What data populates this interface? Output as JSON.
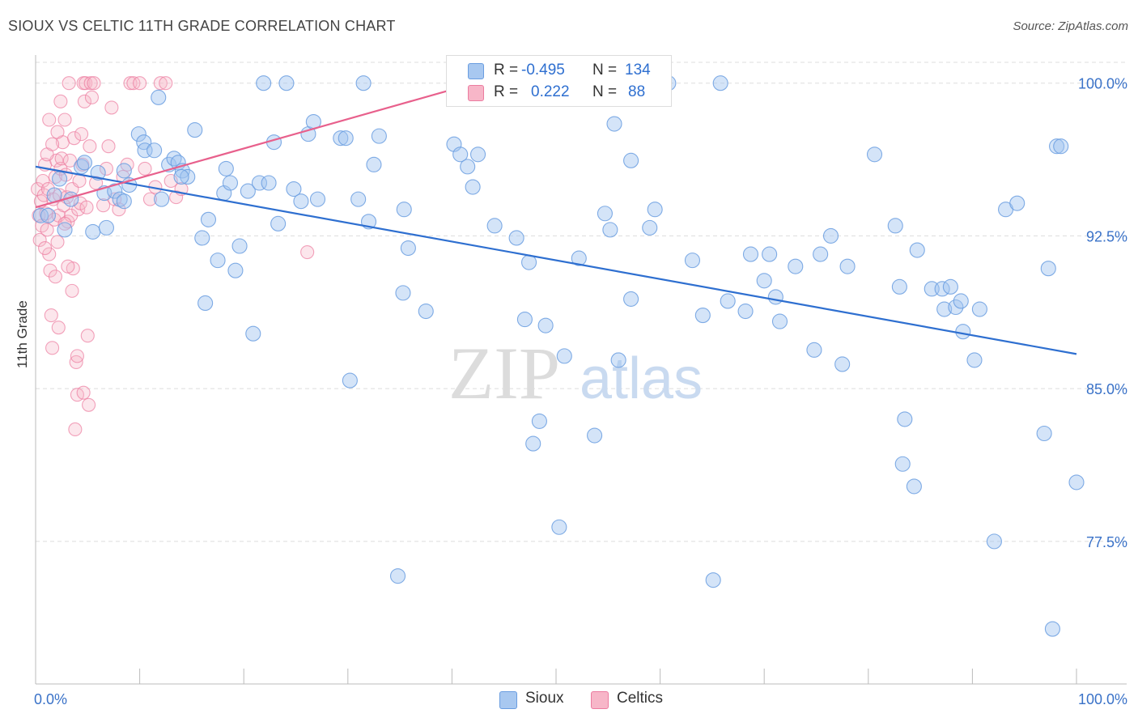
{
  "title": "SIOUX VS CELTIC 11TH GRADE CORRELATION CHART",
  "source": "Source: ZipAtlas.com",
  "watermark": {
    "zip": "ZIP",
    "atlas": "atlas"
  },
  "legend": {
    "rows": [
      {
        "r_label": "R =",
        "r_value": "-0.495",
        "n_label": "N =",
        "n_value": "134",
        "color": "#a8c8f0"
      },
      {
        "r_label": "R =",
        "r_value": "0.222",
        "n_label": "N =",
        "n_value": "88",
        "color": "#f7b6c8"
      }
    ]
  },
  "bottom_legend": [
    {
      "label": "Sioux",
      "color": "#a8c8f0"
    },
    {
      "label": "Celtics",
      "color": "#f7b6c8"
    }
  ],
  "colors": {
    "sioux": "#6a9de0",
    "sioux_fill": "rgba(160,196,240,0.45)",
    "celtics": "#ec7ca0",
    "celtics_fill": "rgba(247,182,200,0.35)",
    "sioux_line": "#2e6fd0",
    "celtics_line": "#e8608c",
    "axis_text": "#3a72c8"
  },
  "chart_data": {
    "type": "scatter",
    "title": "SIOUX VS CELTIC 11TH GRADE CORRELATION CHART",
    "xlabel": "",
    "ylabel": "11th Grade",
    "xlim": [
      0,
      100
    ],
    "ylim": [
      70.5,
      101.3
    ],
    "x_tick_labels": [
      "0.0%",
      "100.0%"
    ],
    "y_ticks": [
      77.5,
      85.0,
      92.5,
      100.0
    ],
    "y_tick_labels": [
      "77.5%",
      "85.0%",
      "92.5%",
      "100.0%"
    ],
    "grid": "horizontal dashed",
    "series": [
      {
        "name": "Sioux",
        "trend": [
          [
            0,
            95.9
          ],
          [
            100,
            86.7
          ]
        ],
        "points": [
          [
            0.5,
            93.5
          ],
          [
            1.2,
            93.5
          ],
          [
            1.8,
            94.5
          ],
          [
            2.3,
            95.3
          ],
          [
            2.8,
            92.8
          ],
          [
            3.4,
            94.3
          ],
          [
            4.4,
            95.9
          ],
          [
            4.7,
            96.1
          ],
          [
            5.5,
            92.7
          ],
          [
            6.0,
            95.6
          ],
          [
            6.6,
            94.6
          ],
          [
            6.8,
            92.9
          ],
          [
            7.6,
            94.7
          ],
          [
            8.1,
            94.3
          ],
          [
            8.5,
            95.7
          ],
          [
            9.0,
            95.0
          ],
          [
            9.9,
            97.5
          ],
          [
            10.4,
            97.1
          ],
          [
            10.5,
            96.7
          ],
          [
            11.4,
            96.7
          ],
          [
            11.8,
            99.3
          ],
          [
            12.1,
            94.3
          ],
          [
            12.8,
            96.0
          ],
          [
            13.3,
            96.3
          ],
          [
            13.7,
            96.1
          ],
          [
            14.1,
            95.7
          ],
          [
            14.6,
            95.4
          ],
          [
            15.3,
            97.7
          ],
          [
            16.0,
            92.4
          ],
          [
            16.3,
            89.2
          ],
          [
            16.6,
            93.3
          ],
          [
            17.5,
            91.3
          ],
          [
            18.1,
            94.6
          ],
          [
            18.3,
            95.8
          ],
          [
            18.7,
            95.1
          ],
          [
            19.2,
            90.8
          ],
          [
            19.6,
            92.0
          ],
          [
            20.4,
            94.7
          ],
          [
            20.9,
            87.7
          ],
          [
            21.5,
            95.1
          ],
          [
            21.9,
            100.0
          ],
          [
            22.4,
            95.1
          ],
          [
            22.9,
            97.1
          ],
          [
            23.3,
            93.1
          ],
          [
            24.1,
            100.0
          ],
          [
            24.8,
            94.8
          ],
          [
            25.5,
            94.2
          ],
          [
            26.2,
            97.5
          ],
          [
            26.7,
            98.1
          ],
          [
            27.1,
            94.3
          ],
          [
            29.3,
            97.3
          ],
          [
            29.8,
            97.3
          ],
          [
            30.2,
            85.4
          ],
          [
            31.0,
            94.3
          ],
          [
            31.5,
            100.0
          ],
          [
            32.0,
            93.2
          ],
          [
            32.5,
            96.0
          ],
          [
            33.0,
            97.4
          ],
          [
            34.8,
            75.8
          ],
          [
            35.3,
            89.7
          ],
          [
            35.4,
            93.8
          ],
          [
            35.8,
            91.9
          ],
          [
            37.5,
            88.8
          ],
          [
            40.2,
            97.0
          ],
          [
            40.8,
            96.5
          ],
          [
            41.5,
            95.9
          ],
          [
            42.0,
            94.9
          ],
          [
            42.5,
            96.5
          ],
          [
            44.1,
            93.0
          ],
          [
            45.1,
            100.0
          ],
          [
            46.2,
            92.4
          ],
          [
            47.0,
            88.4
          ],
          [
            47.4,
            91.2
          ],
          [
            47.8,
            82.3
          ],
          [
            48.4,
            83.4
          ],
          [
            49.0,
            88.1
          ],
          [
            50.3,
            78.2
          ],
          [
            50.8,
            86.6
          ],
          [
            52.2,
            91.4
          ],
          [
            53.7,
            82.7
          ],
          [
            54.7,
            93.6
          ],
          [
            55.2,
            92.8
          ],
          [
            55.6,
            98.0
          ],
          [
            56.0,
            86.4
          ],
          [
            57.2,
            89.4
          ],
          [
            59.0,
            92.9
          ],
          [
            59.5,
            93.8
          ],
          [
            60.8,
            100.0
          ],
          [
            63.1,
            91.3
          ],
          [
            64.1,
            88.6
          ],
          [
            65.1,
            75.6
          ],
          [
            65.8,
            100.0
          ],
          [
            66.5,
            89.3
          ],
          [
            68.2,
            88.8
          ],
          [
            68.7,
            91.6
          ],
          [
            70.0,
            90.3
          ],
          [
            70.5,
            91.6
          ],
          [
            71.1,
            89.5
          ],
          [
            71.5,
            88.3
          ],
          [
            73.0,
            91.0
          ],
          [
            74.8,
            86.9
          ],
          [
            75.4,
            91.6
          ],
          [
            76.4,
            92.5
          ],
          [
            77.5,
            86.2
          ],
          [
            78.0,
            91.0
          ],
          [
            80.6,
            96.5
          ],
          [
            82.6,
            93.0
          ],
          [
            83.0,
            90.0
          ],
          [
            83.3,
            81.3
          ],
          [
            83.5,
            83.5
          ],
          [
            84.4,
            80.2
          ],
          [
            84.7,
            91.8
          ],
          [
            86.1,
            89.9
          ],
          [
            87.1,
            89.9
          ],
          [
            87.3,
            88.9
          ],
          [
            87.9,
            90.0
          ],
          [
            88.4,
            89.0
          ],
          [
            88.9,
            89.3
          ],
          [
            89.1,
            87.8
          ],
          [
            90.2,
            86.4
          ],
          [
            90.7,
            88.9
          ],
          [
            92.1,
            77.5
          ],
          [
            93.2,
            93.8
          ],
          [
            94.3,
            94.1
          ],
          [
            96.9,
            82.8
          ],
          [
            97.3,
            90.9
          ],
          [
            97.7,
            73.2
          ],
          [
            98.1,
            96.9
          ],
          [
            100.0,
            80.4
          ],
          [
            98.5,
            96.9
          ],
          [
            57.2,
            96.2
          ],
          [
            14.0,
            95.4
          ],
          [
            8.5,
            94.2
          ]
        ]
      },
      {
        "name": "Celtics",
        "trend": [
          [
            0,
            93.9
          ],
          [
            42.2,
            100.0
          ]
        ],
        "points": [
          [
            0.2,
            94.8
          ],
          [
            0.3,
            93.5
          ],
          [
            0.4,
            92.3
          ],
          [
            0.5,
            94.2
          ],
          [
            0.6,
            93.0
          ],
          [
            0.7,
            95.2
          ],
          [
            0.8,
            94.5
          ],
          [
            0.9,
            96.0
          ],
          [
            1.0,
            93.6
          ],
          [
            1.1,
            92.8
          ],
          [
            1.2,
            94.8
          ],
          [
            1.3,
            91.6
          ],
          [
            1.4,
            90.8
          ],
          [
            1.5,
            88.6
          ],
          [
            1.6,
            87.0
          ],
          [
            1.7,
            94.3
          ],
          [
            1.8,
            93.3
          ],
          [
            1.9,
            95.4
          ],
          [
            2.0,
            96.2
          ],
          [
            2.1,
            92.2
          ],
          [
            2.2,
            93.5
          ],
          [
            2.3,
            94.5
          ],
          [
            2.4,
            95.8
          ],
          [
            2.5,
            96.3
          ],
          [
            2.6,
            97.1
          ],
          [
            2.7,
            94.0
          ],
          [
            2.8,
            98.2
          ],
          [
            2.9,
            95.5
          ],
          [
            3.0,
            94.4
          ],
          [
            3.1,
            93.2
          ],
          [
            3.2,
            100.0
          ],
          [
            3.3,
            96.2
          ],
          [
            3.4,
            93.5
          ],
          [
            3.5,
            94.8
          ],
          [
            3.6,
            90.9
          ],
          [
            3.7,
            97.3
          ],
          [
            3.8,
            83.0
          ],
          [
            3.9,
            86.3
          ],
          [
            4.0,
            84.7
          ],
          [
            4.1,
            93.8
          ],
          [
            4.2,
            95.2
          ],
          [
            4.3,
            94.1
          ],
          [
            4.4,
            97.5
          ],
          [
            4.5,
            96.0
          ],
          [
            4.6,
            100.0
          ],
          [
            4.7,
            99.1
          ],
          [
            4.8,
            100.0
          ],
          [
            4.9,
            93.9
          ],
          [
            5.0,
            87.6
          ],
          [
            5.1,
            84.2
          ],
          [
            5.2,
            96.9
          ],
          [
            5.3,
            100.0
          ],
          [
            5.4,
            99.3
          ],
          [
            5.6,
            100.0
          ],
          [
            5.8,
            95.1
          ],
          [
            6.5,
            94.0
          ],
          [
            6.8,
            95.8
          ],
          [
            7.0,
            96.9
          ],
          [
            7.3,
            98.8
          ],
          [
            7.6,
            94.3
          ],
          [
            8.0,
            93.8
          ],
          [
            8.4,
            95.4
          ],
          [
            8.8,
            96.0
          ],
          [
            9.1,
            100.0
          ],
          [
            9.4,
            100.0
          ],
          [
            10.0,
            100.0
          ],
          [
            10.5,
            95.8
          ],
          [
            11.0,
            94.3
          ],
          [
            11.5,
            94.9
          ],
          [
            12.0,
            100.0
          ],
          [
            12.5,
            100.0
          ],
          [
            13.0,
            95.2
          ],
          [
            13.5,
            94.4
          ],
          [
            14.0,
            94.8
          ],
          [
            1.1,
            96.5
          ],
          [
            1.3,
            98.2
          ],
          [
            1.6,
            97.0
          ],
          [
            2.1,
            97.6
          ],
          [
            2.4,
            99.1
          ],
          [
            2.8,
            93.1
          ],
          [
            3.1,
            91.0
          ],
          [
            3.5,
            89.8
          ],
          [
            4.0,
            86.6
          ],
          [
            4.6,
            84.8
          ],
          [
            26.1,
            91.7
          ],
          [
            2.2,
            88.0
          ],
          [
            1.9,
            90.5
          ],
          [
            0.9,
            91.9
          ]
        ]
      }
    ]
  }
}
